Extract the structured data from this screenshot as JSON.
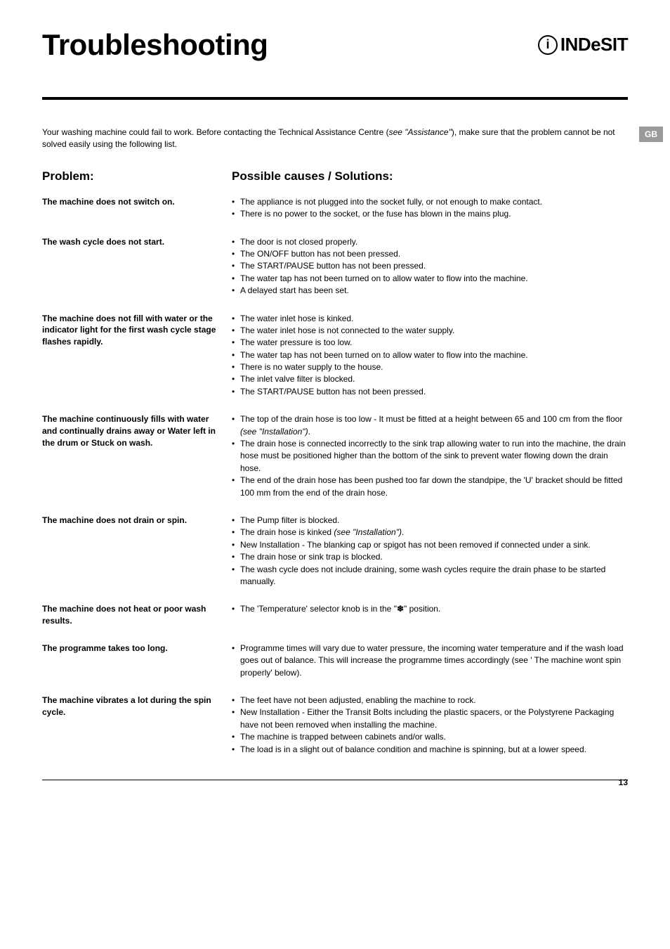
{
  "header": {
    "title": "Troubleshooting",
    "brand_text": "INDeSIT"
  },
  "gb_badge": "GB",
  "intro": "Your washing machine could fail to work. Before contacting the Technical Assistance Centre (see \"Assistance\"), make sure that the problem cannot be not solved easily using the following list.",
  "columns": {
    "left": "Problem:",
    "right": "Possible causes / Solutions:"
  },
  "rows": [
    {
      "problem": "The machine does not switch on.",
      "solutions": [
        "The appliance is not plugged into the socket fully, or not enough to make contact.",
        "There is no power to the socket, or the fuse has blown in the mains plug."
      ]
    },
    {
      "problem": "The wash cycle does not start.",
      "solutions": [
        "The door is not closed properly.",
        "The ON/OFF button has not been pressed.",
        "The START/PAUSE button has not been pressed.",
        "The water tap has not been turned on to allow water to flow into the machine.",
        "A delayed start has been set."
      ]
    },
    {
      "problem": "The machine does not fill with water or the indicator light for the first wash cycle stage flashes rapidly.",
      "solutions": [
        "The water inlet hose is kinked.",
        "The water inlet hose is not connected to the water supply.",
        "The water pressure is too low.",
        "The water tap has not been turned on to allow water to flow into the machine.",
        "There is no water supply to the house.",
        "The inlet valve filter is blocked.",
        "The START/PAUSE button has not been pressed."
      ]
    },
    {
      "problem": "The machine continuously fills with water and continually drains away or Water left in the drum or Stuck on wash.",
      "solutions": [
        "The top of the drain hose is too low - It must be fitted at a height between 65 and 100 cm from the floor (see \"Installation\").",
        "The drain hose is connected incorrectly to the sink trap allowing water to run into the machine, the drain hose must be positioned higher than the bottom of the sink to prevent water flowing down the drain hose.",
        "The end of the drain hose has been pushed too far down the standpipe, the 'U' bracket should be fitted 100 mm from the end of the drain hose."
      ]
    },
    {
      "problem": "The machine does not drain or spin.",
      "solutions": [
        "The Pump filter is blocked.",
        "The drain hose is kinked (see \"Installation\").",
        "New Installation -  The blanking cap or spigot has not been removed if connected under a sink.",
        "The drain hose or sink trap is blocked.",
        "The wash cycle does not include draining, some wash cycles require the drain phase to be started manually."
      ]
    },
    {
      "problem": "The machine does not heat or poor wash results.",
      "solutions": [
        "The 'Temperature' selector knob is in the \"❄\" position."
      ]
    },
    {
      "problem": "The programme takes too long.",
      "solutions": [
        "Programme times will vary due to water pressure, the incoming water temperature and if the wash load goes out of balance. This will increase the programme times accordingly (see ' The machine wont spin properly' below)."
      ]
    },
    {
      "problem": "The machine vibrates a lot during the spin cycle.",
      "solutions": [
        "The feet have not been adjusted, enabling the machine to rock.",
        "New Installation -  Either the Transit Bolts including the plastic spacers, or the Polystyrene Packaging have not been removed when installing the machine.",
        "The machine is trapped between cabinets and/or walls.",
        "The load is in a slight out of balance condition and machine is spinning, but at a lower speed."
      ]
    }
  ],
  "page_number": "13"
}
